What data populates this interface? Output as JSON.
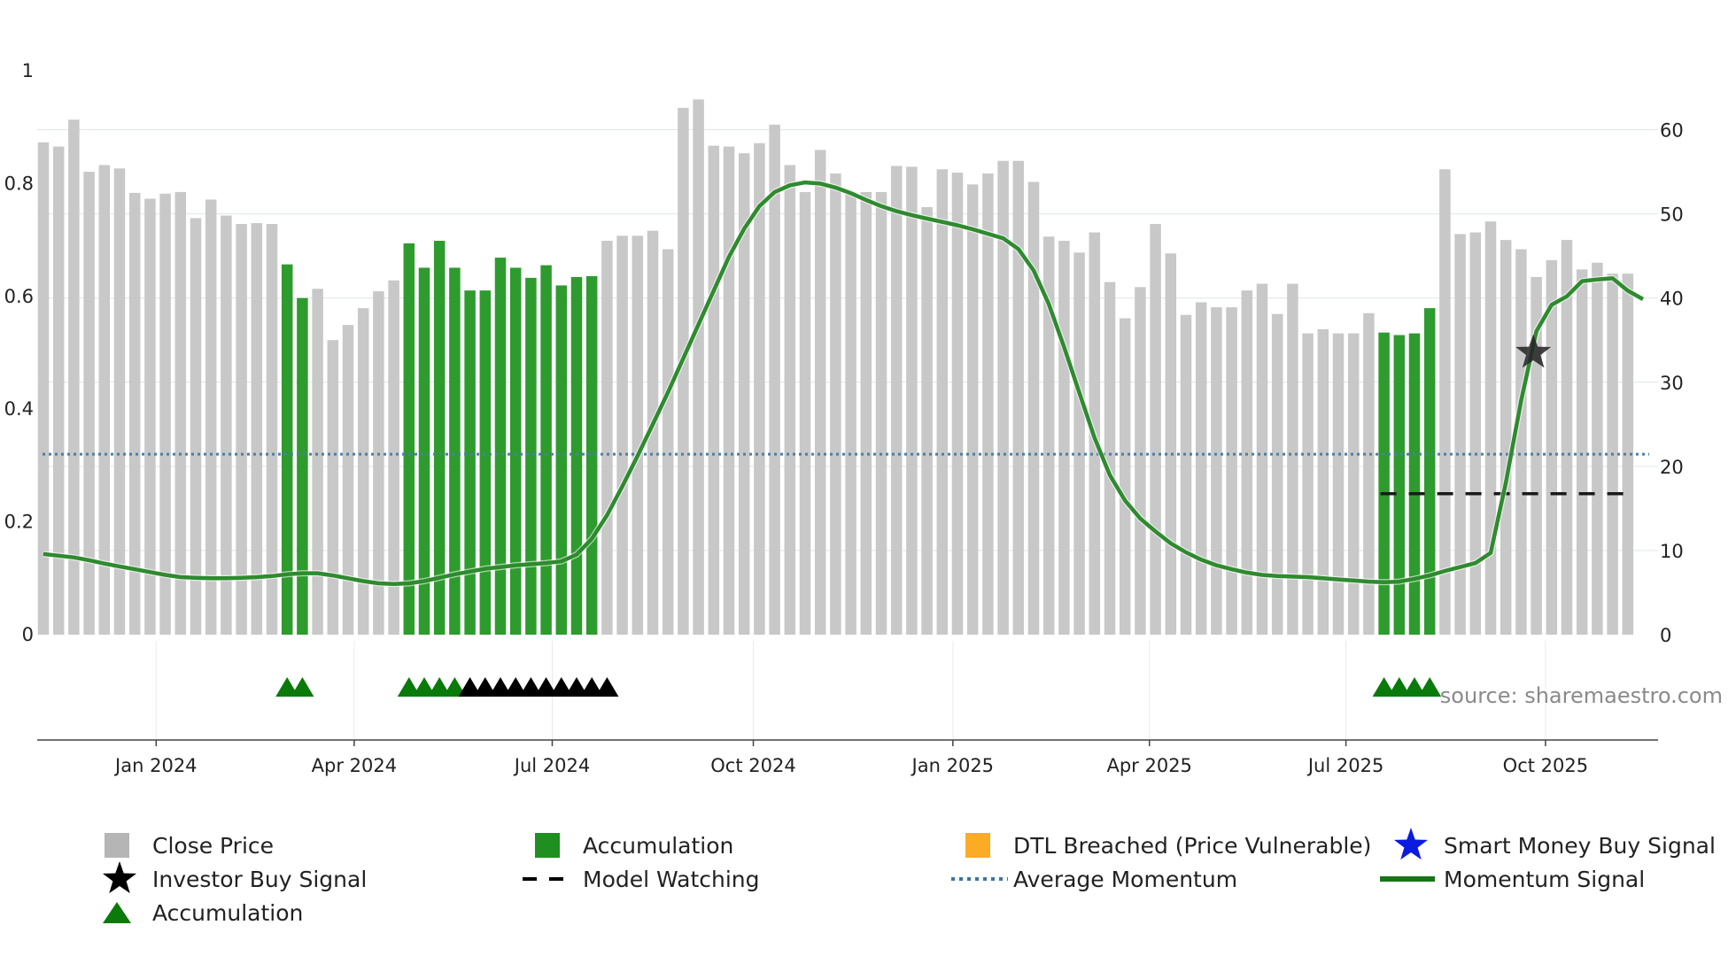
{
  "chart_data": {
    "type": "bar",
    "source_text": "source: sharemaestro.com",
    "y_left": {
      "ylim": [
        0,
        1
      ],
      "ticks": [
        0,
        0.2,
        0.4,
        0.6,
        0.8,
        1
      ],
      "tick_labels": [
        "0",
        "0.2",
        "0.4",
        "0.6",
        "0.8",
        "1"
      ]
    },
    "y_right": {
      "ylim": [
        0,
        67
      ],
      "ticks": [
        0,
        10,
        20,
        30,
        40,
        50,
        60
      ],
      "tick_labels": [
        "0",
        "10",
        "20",
        "30",
        "40",
        "50",
        "60"
      ]
    },
    "x_ticks": [
      {
        "label": "Jan 2024",
        "idx": 7.4
      },
      {
        "label": "Apr 2024",
        "idx": 20.4
      },
      {
        "label": "Jul 2024",
        "idx": 33.4
      },
      {
        "label": "Oct 2024",
        "idx": 46.6
      },
      {
        "label": "Jan 2025",
        "idx": 59.7
      },
      {
        "label": "Apr 2025",
        "idx": 72.6
      },
      {
        "label": "Jul 2025",
        "idx": 85.5
      },
      {
        "label": "Oct 2025",
        "idx": 98.6
      }
    ],
    "series": [
      {
        "name": "Close Price",
        "axis": "right",
        "color": "#c8c8c8",
        "accent_color": "#2e9b2e",
        "values": [
          58.5,
          58,
          61.2,
          55,
          55.8,
          55.4,
          52.5,
          51.8,
          52.4,
          52.6,
          49.5,
          51.7,
          49.8,
          48.8,
          48.9,
          48.8,
          44,
          40,
          41.1,
          35,
          36.8,
          38.8,
          40.8,
          42.1,
          46.5,
          43.6,
          46.8,
          43.6,
          40.9,
          40.9,
          44.8,
          43.6,
          42.4,
          43.9,
          41.5,
          42.5,
          42.6,
          46.8,
          47.4,
          47.4,
          48,
          45.8,
          62.6,
          63.6,
          58.1,
          58,
          57.2,
          58.4,
          60.6,
          55.8,
          52.6,
          57.6,
          54.8,
          52.6,
          52.6,
          52.6,
          55.7,
          55.6,
          50.8,
          55.3,
          54.9,
          53.5,
          54.8,
          56.3,
          56.3,
          53.8,
          47.3,
          46.8,
          45.4,
          47.8,
          41.9,
          37.6,
          41.3,
          48.8,
          45.3,
          38,
          39.5,
          38.9,
          38.9,
          40.9,
          41.7,
          38.1,
          41.7,
          35.8,
          36.3,
          35.8,
          35.8,
          38.2,
          35.9,
          35.6,
          35.8,
          38.8,
          55.3,
          47.6,
          47.8,
          49.1,
          46.9,
          45.8,
          42.5,
          44.5,
          46.9,
          43.4,
          44.2,
          42.9,
          42.9
        ]
      },
      {
        "name": "Accumulation",
        "type": "bar-highlight",
        "color": "#2e9b2e",
        "indices": [
          16,
          17,
          24,
          25,
          26,
          27,
          28,
          29,
          30,
          31,
          32,
          33,
          34,
          35,
          36,
          88,
          89,
          90,
          91
        ]
      },
      {
        "name": "Momentum Signal",
        "axis": "left",
        "type": "line",
        "color": "#2e8b2e",
        "values": [
          0.143,
          0.14,
          0.137,
          0.132,
          0.126,
          0.121,
          0.116,
          0.111,
          0.106,
          0.102,
          0.101,
          0.1,
          0.1,
          0.101,
          0.102,
          0.104,
          0.107,
          0.109,
          0.109,
          0.105,
          0.1,
          0.095,
          0.091,
          0.09,
          0.091,
          0.095,
          0.101,
          0.107,
          0.112,
          0.117,
          0.12,
          0.123,
          0.125,
          0.127,
          0.13,
          0.142,
          0.17,
          0.212,
          0.263,
          0.317,
          0.373,
          0.43,
          0.49,
          0.55,
          0.61,
          0.67,
          0.72,
          0.76,
          0.785,
          0.797,
          0.802,
          0.8,
          0.793,
          0.783,
          0.771,
          0.76,
          0.751,
          0.744,
          0.738,
          0.732,
          0.726,
          0.719,
          0.711,
          0.703,
          0.684,
          0.646,
          0.586,
          0.51,
          0.429,
          0.349,
          0.283,
          0.238,
          0.206,
          0.183,
          0.162,
          0.146,
          0.133,
          0.123,
          0.116,
          0.11,
          0.106,
          0.104,
          0.103,
          0.102,
          0.1,
          0.098,
          0.096,
          0.094,
          0.093,
          0.094,
          0.099,
          0.105,
          0.113,
          0.12,
          0.127,
          0.145,
          0.27,
          0.415,
          0.538,
          0.585,
          0.6,
          0.627,
          0.63,
          0.632,
          0.61,
          0.595
        ]
      },
      {
        "name": "Average Momentum",
        "axis": "left",
        "type": "hline",
        "color": "#4a7fa5",
        "value": 0.32
      },
      {
        "name": "Model Watching",
        "axis": "left",
        "type": "dashed-line",
        "color": "#1a1a1a",
        "value": 0.25,
        "start_idx": 88,
        "end_idx": 104
      },
      {
        "name": "Investor Buy Signal",
        "axis": "left",
        "type": "marker",
        "color": "#222222",
        "points": [
          {
            "idx": 97.8,
            "value": 0.5
          }
        ]
      },
      {
        "name": "Accumulation",
        "type": "triangle-markers",
        "color": "#0a7a0a",
        "indices": [
          16,
          17,
          24,
          25,
          26,
          27,
          88,
          89,
          90,
          91
        ]
      },
      {
        "name": "Model Watching",
        "type": "triangle-markers",
        "color": "#000000",
        "indices": [
          28,
          29,
          30,
          31,
          32,
          33,
          34,
          35,
          36,
          37
        ]
      }
    ],
    "legend": [
      {
        "label": "Close Price",
        "symbol": "square",
        "color": "#b5b5b5"
      },
      {
        "label": "Accumulation",
        "symbol": "square",
        "color": "#1f8f1f"
      },
      {
        "label": "DTL Breached (Price Vulnerable)",
        "symbol": "square",
        "color": "#fbab25"
      },
      {
        "label": "Smart Money Buy Signal",
        "symbol": "star",
        "color": "#0b1be0"
      },
      {
        "label": "Investor Buy Signal",
        "symbol": "star",
        "color": "#000000"
      },
      {
        "label": "Model Watching",
        "symbol": "dash",
        "color": "#000000"
      },
      {
        "label": "Average Momentum",
        "symbol": "dot",
        "color": "#3a76a5"
      },
      {
        "label": "Momentum Signal",
        "symbol": "line",
        "color": "#177517"
      },
      {
        "label": "Accumulation",
        "symbol": "triangle",
        "color": "#0a7a0a"
      }
    ]
  }
}
